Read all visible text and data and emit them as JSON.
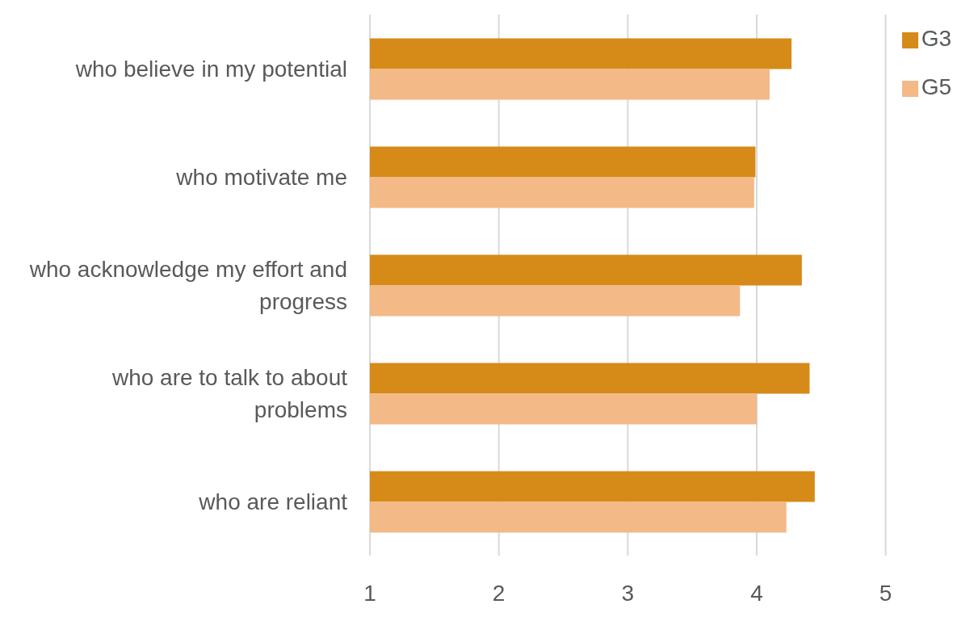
{
  "chart_data": {
    "type": "bar",
    "orientation": "horizontal",
    "categories": [
      "who believe in my potential",
      "who motivate me",
      "who acknowledge my effort and progress",
      "who are to talk to about problems",
      "who are reliant"
    ],
    "series": [
      {
        "name": "G3",
        "color": "#d68a17",
        "values": [
          4.27,
          3.99,
          4.35,
          4.41,
          4.45
        ]
      },
      {
        "name": "G5",
        "color": "#f3b987",
        "values": [
          4.1,
          3.98,
          3.87,
          4.0,
          4.23
        ]
      }
    ],
    "xlim": [
      1,
      5
    ],
    "xticks": [
      1,
      2,
      3,
      4,
      5
    ],
    "grid": "x",
    "legend": "top right"
  }
}
